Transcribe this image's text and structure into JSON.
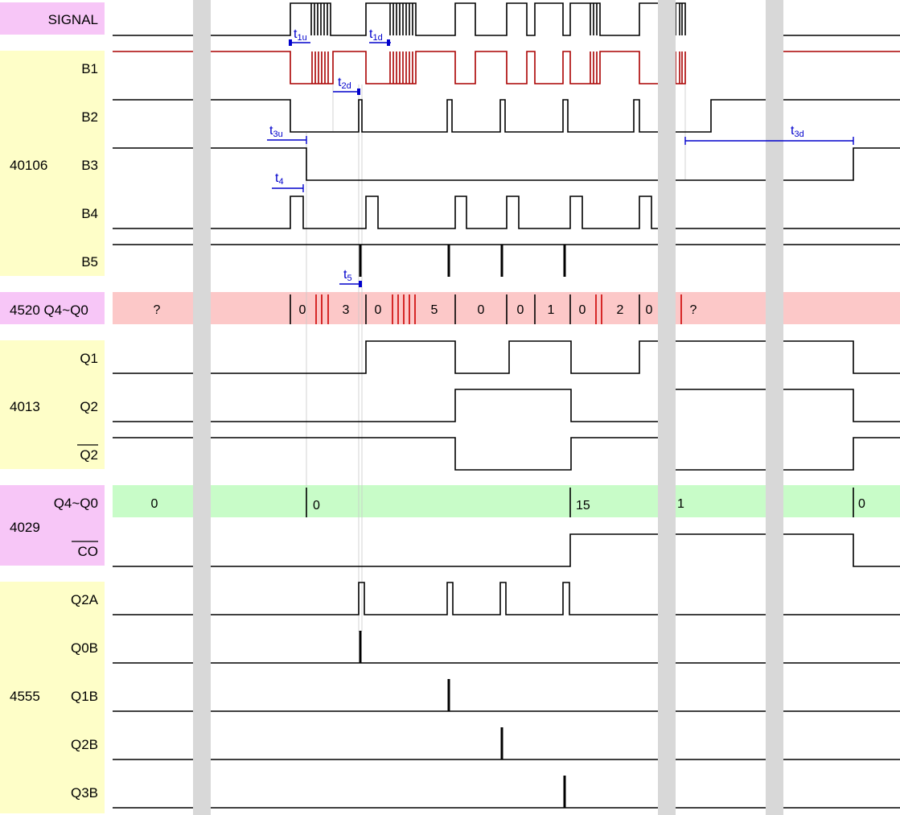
{
  "groups": [
    {
      "id": "signal",
      "label": "",
      "color": "#f7c6f7"
    },
    {
      "id": "ic40106",
      "label": "40106",
      "color": "#fefec8"
    },
    {
      "id": "ic4520",
      "label": "",
      "color": "#f7c6f7"
    },
    {
      "id": "ic4013",
      "label": "4013",
      "color": "#fefec8"
    },
    {
      "id": "ic4029",
      "label": "4029",
      "color": "#f7c6f7"
    },
    {
      "id": "ic4555",
      "label": "4555",
      "color": "#fefec8"
    }
  ],
  "signals": [
    {
      "id": "SIGNAL",
      "label": "SIGNAL"
    },
    {
      "id": "B1",
      "label": "B1"
    },
    {
      "id": "B2",
      "label": "B2"
    },
    {
      "id": "B3",
      "label": "B3"
    },
    {
      "id": "B4",
      "label": "B4"
    },
    {
      "id": "B5",
      "label": "B5"
    },
    {
      "id": "CNT4520",
      "label": "4520 Q4~Q0"
    },
    {
      "id": "Q1",
      "label": "Q1"
    },
    {
      "id": "Q2",
      "label": "Q2"
    },
    {
      "id": "Q2N",
      "label": "Q2",
      "overline": true
    },
    {
      "id": "CNT4029",
      "label": "Q4~Q0"
    },
    {
      "id": "CO",
      "label": "CO",
      "overline": true
    },
    {
      "id": "Q2A",
      "label": "Q2A"
    },
    {
      "id": "Q0B",
      "label": "Q0B"
    },
    {
      "id": "Q1B",
      "label": "Q1B"
    },
    {
      "id": "Q2B",
      "label": "Q2B"
    },
    {
      "id": "Q3B",
      "label": "Q3B"
    }
  ],
  "bus_4520": {
    "values": [
      "?",
      "0",
      "3",
      "0",
      "5",
      "0",
      "0",
      "1",
      "0",
      "2",
      "0",
      "?"
    ],
    "color": "#fcc8c8"
  },
  "bus_4029": {
    "values": [
      "0",
      "0",
      "15",
      "1",
      "0"
    ],
    "color": "#c8fcc8"
  },
  "annotations": [
    {
      "id": "t1u",
      "main": "t",
      "sub": "1u"
    },
    {
      "id": "t1d",
      "main": "t",
      "sub": "1d"
    },
    {
      "id": "t2d",
      "main": "t",
      "sub": "2d"
    },
    {
      "id": "t3u",
      "main": "t",
      "sub": "3u"
    },
    {
      "id": "t3d",
      "main": "t",
      "sub": "3d"
    },
    {
      "id": "t4",
      "main": "t",
      "sub": "4"
    },
    {
      "id": "t5",
      "main": "t",
      "sub": "5"
    }
  ],
  "colors": {
    "wave": "#000000",
    "b1_wave": "#aa0000",
    "annotation": "#0000cc",
    "time_break": "#d8d8d8"
  }
}
